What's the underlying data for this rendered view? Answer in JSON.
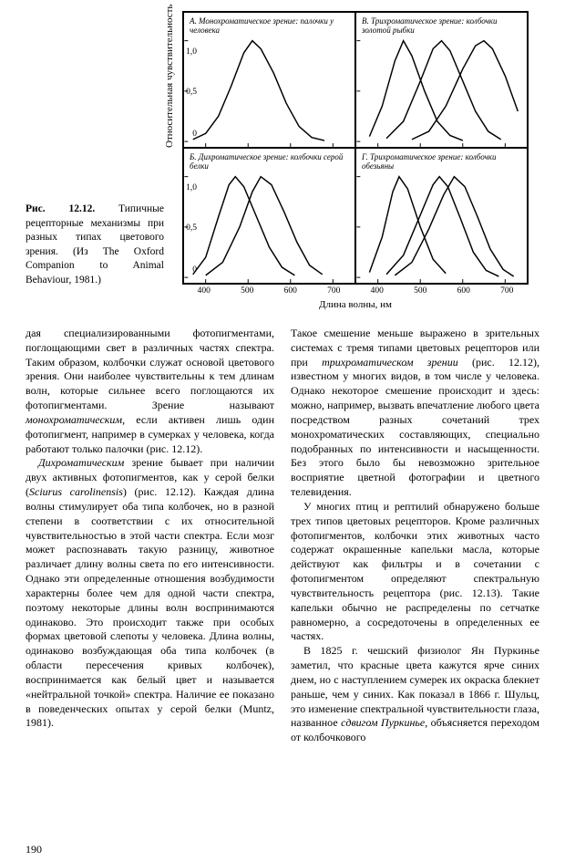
{
  "figure": {
    "caption_label": "Рис. 12.12.",
    "caption_text": "Типичные рецепторные механизмы при разных типах цветового зрения. (Из The Oxford Companion to Animal Behaviour, 1981.)",
    "ylabel": "Относительная чувствительность",
    "xlabel": "Длина волны, нм",
    "xlim": [
      350,
      750
    ],
    "ylim": [
      0,
      1.1
    ],
    "yticks": [
      "1,0",
      "0,5",
      "0"
    ],
    "xticks": [
      "400",
      "500",
      "600",
      "700"
    ],
    "line_color": "#000000",
    "line_width": 1.5,
    "border_color": "#000000",
    "background_color": "#ffffff",
    "panels": {
      "A": {
        "title": "А. Монохроматическое зрение: палочки у человека",
        "curves": [
          [
            [
              370,
              0.02
            ],
            [
              400,
              0.08
            ],
            [
              430,
              0.25
            ],
            [
              460,
              0.55
            ],
            [
              490,
              0.88
            ],
            [
              510,
              1.0
            ],
            [
              530,
              0.92
            ],
            [
              560,
              0.68
            ],
            [
              590,
              0.38
            ],
            [
              620,
              0.15
            ],
            [
              650,
              0.04
            ],
            [
              680,
              0.01
            ]
          ]
        ]
      },
      "B": {
        "title": "В. Трихроматическое зрение: колбочки золотой рыбки",
        "curves": [
          [
            [
              380,
              0.05
            ],
            [
              410,
              0.35
            ],
            [
              440,
              0.8
            ],
            [
              460,
              1.0
            ],
            [
              480,
              0.85
            ],
            [
              510,
              0.5
            ],
            [
              540,
              0.2
            ],
            [
              570,
              0.06
            ],
            [
              600,
              0.01
            ]
          ],
          [
            [
              420,
              0.03
            ],
            [
              460,
              0.2
            ],
            [
              500,
              0.6
            ],
            [
              530,
              0.92
            ],
            [
              550,
              1.0
            ],
            [
              570,
              0.9
            ],
            [
              600,
              0.6
            ],
            [
              630,
              0.3
            ],
            [
              660,
              0.1
            ],
            [
              690,
              0.02
            ]
          ],
          [
            [
              480,
              0.02
            ],
            [
              520,
              0.1
            ],
            [
              560,
              0.35
            ],
            [
              600,
              0.72
            ],
            [
              630,
              0.95
            ],
            [
              650,
              1.0
            ],
            [
              670,
              0.92
            ],
            [
              700,
              0.65
            ],
            [
              730,
              0.3
            ]
          ]
        ]
      },
      "Bk": {
        "title": "Б. Дихроматическое зрение: колбочки серой белки",
        "curves": [
          [
            [
              370,
              0.03
            ],
            [
              400,
              0.2
            ],
            [
              430,
              0.6
            ],
            [
              455,
              0.92
            ],
            [
              470,
              1.0
            ],
            [
              490,
              0.9
            ],
            [
              520,
              0.6
            ],
            [
              550,
              0.3
            ],
            [
              580,
              0.1
            ],
            [
              610,
              0.02
            ]
          ],
          [
            [
              400,
              0.02
            ],
            [
              440,
              0.15
            ],
            [
              480,
              0.5
            ],
            [
              510,
              0.85
            ],
            [
              530,
              1.0
            ],
            [
              555,
              0.92
            ],
            [
              585,
              0.65
            ],
            [
              615,
              0.35
            ],
            [
              645,
              0.12
            ],
            [
              675,
              0.03
            ]
          ]
        ]
      },
      "G": {
        "title": "Г. Трихроматическое зрение: колбочки обезьяны",
        "curves": [
          [
            [
              380,
              0.05
            ],
            [
              410,
              0.4
            ],
            [
              435,
              0.85
            ],
            [
              450,
              1.0
            ],
            [
              470,
              0.88
            ],
            [
              500,
              0.5
            ],
            [
              530,
              0.18
            ],
            [
              560,
              0.04
            ]
          ],
          [
            [
              420,
              0.03
            ],
            [
              460,
              0.22
            ],
            [
              500,
              0.62
            ],
            [
              530,
              0.92
            ],
            [
              545,
              1.0
            ],
            [
              565,
              0.9
            ],
            [
              595,
              0.58
            ],
            [
              625,
              0.25
            ],
            [
              655,
              0.07
            ],
            [
              685,
              0.01
            ]
          ],
          [
            [
              440,
              0.02
            ],
            [
              480,
              0.15
            ],
            [
              520,
              0.48
            ],
            [
              555,
              0.82
            ],
            [
              580,
              1.0
            ],
            [
              605,
              0.9
            ],
            [
              635,
              0.6
            ],
            [
              665,
              0.28
            ],
            [
              695,
              0.08
            ],
            [
              720,
              0.01
            ]
          ]
        ]
      }
    }
  },
  "text": {
    "col1": {
      "p1": "дая специализированными фотопигментами, поглощающими свет в различных частях спектра. Таким образом, колбочки служат основой цветового зрения. Они наиболее чувствительны к тем длинам волн, которые сильнее всего поглощаются их фотопигментами. Зрение называют <em>монохроматическим</em>, если активен лишь один фотопигмент, например в сумерках у человека, когда работают только палочки (рис. 12.12).",
      "p2": "<em>Дихроматическим</em> зрение бывает при наличии двух активных фотопигментов, как у серой белки (<em>Sciurus carolinensis</em>) (рис. 12.12). Каждая длина волны стимулирует оба типа колбочек, но в разной степени в соответствии с их относительной чувствительностью в этой части спектра. Если мозг может распознавать такую разницу, животное различает длину волны света по его интенсивности. Однако эти определенные отношения возбудимости характерны более чем для одной части спектра, поэтому некоторые длины волн воспринимаются одинаково. Это происходит также при особых формах цветовой слепоты у человека. Длина волны, одинаково возбуждающая оба типа колбочек (в области пересечения кривых колбочек), воспринимается как белый цвет и называется «нейтральной точкой» спектра. Наличие ее показано в поведенческих опытах у серой белки (Muntz, 1981)."
    },
    "col2": {
      "p1": "Такое смешение меньше выражено в зрительных системах с тремя типами цветовых рецепторов или при <em>трихроматическом зрении</em> (рис. 12.12), известном у многих видов, в том числе у человека. Однако некоторое смешение происходит и здесь: можно, например, вызвать впечатление любого цвета посредством разных сочетаний трех монохроматических составляющих, специально подобранных по интенсивности и насыщенности. Без этого было бы невозможно зрительное восприятие цветной фотографии и цветного телевидения.",
      "p2": "У многих птиц и рептилий обнаружено больше трех типов цветовых рецепторов. Кроме различных фотопигментов, колбочки этих животных часто содержат окрашенные капельки масла, которые действуют как фильтры и в сочетании с фотопигментом определяют спектральную чувствительность рецептора (рис. 12.13). Такие капельки обычно не распределены по сетчатке равномерно, а сосредоточены в определенных ее частях.",
      "p3": "В 1825 г. чешский физиолог Ян Пуркинье заметил, что красные цвета кажутся ярче синих днем, но с наступлением сумерек их окраска блекнет раньше, чем у синих. Как показал в 1866 г. Шульц, это изменение спектральной чувствительности глаза, названное <em>сдвигом Пуркинье</em>, объясняется переходом от колбочкового"
    }
  },
  "page_number": "190"
}
